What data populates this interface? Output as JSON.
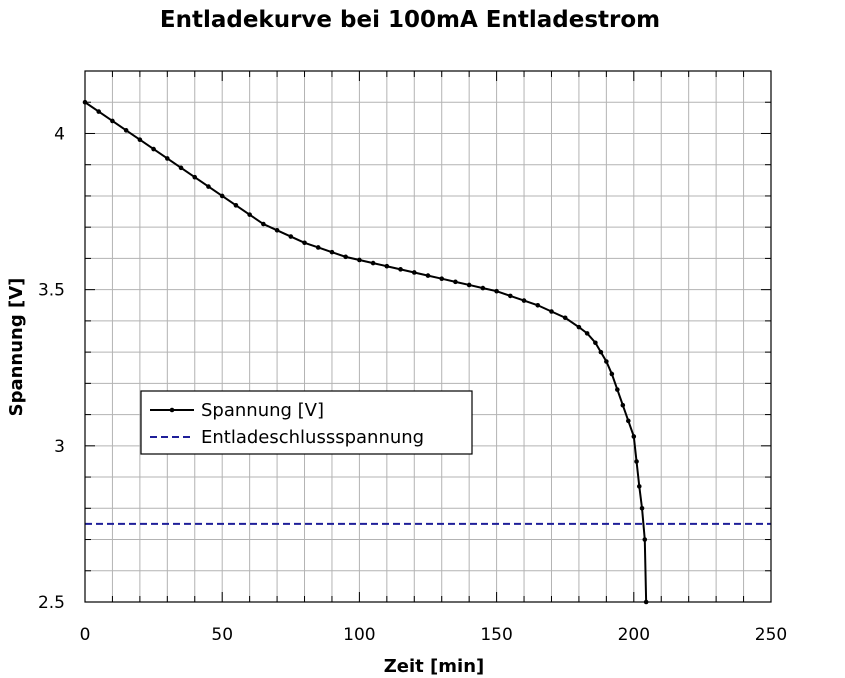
{
  "chart_data": {
    "type": "line",
    "title": "Entladekurve bei 100mA Entladestrom",
    "xlabel": "Zeit [min]",
    "ylabel": "Spannung [V]",
    "xlim": [
      0,
      250
    ],
    "ylim": [
      2.5,
      4.2
    ],
    "xticks": [
      0,
      50,
      100,
      150,
      200,
      250
    ],
    "yticks": [
      2.5,
      3,
      3.5,
      4
    ],
    "xtick_labels": [
      "0",
      "50",
      "100",
      "150",
      "200",
      "250"
    ],
    "ytick_labels": [
      "2.5",
      "3",
      "3.5",
      "4"
    ],
    "grid": true,
    "legend_placement": "center-left",
    "series": [
      {
        "name": "Spannung [V]",
        "color": "#000000",
        "style": "solid-with-markers",
        "x": [
          0,
          5,
          10,
          15,
          20,
          25,
          30,
          35,
          40,
          45,
          50,
          55,
          60,
          65,
          70,
          75,
          80,
          85,
          90,
          95,
          100,
          105,
          110,
          115,
          120,
          125,
          130,
          135,
          140,
          145,
          150,
          155,
          160,
          165,
          170,
          175,
          180,
          183,
          186,
          188,
          190,
          192,
          194,
          196,
          198,
          200,
          201,
          202,
          203,
          204,
          204.5
        ],
        "y": [
          4.1,
          4.07,
          4.04,
          4.01,
          3.98,
          3.95,
          3.92,
          3.89,
          3.86,
          3.83,
          3.8,
          3.77,
          3.74,
          3.71,
          3.69,
          3.67,
          3.65,
          3.635,
          3.62,
          3.605,
          3.595,
          3.585,
          3.575,
          3.565,
          3.555,
          3.545,
          3.535,
          3.525,
          3.515,
          3.505,
          3.495,
          3.48,
          3.465,
          3.45,
          3.43,
          3.41,
          3.38,
          3.36,
          3.33,
          3.3,
          3.27,
          3.23,
          3.18,
          3.13,
          3.08,
          3.03,
          2.95,
          2.87,
          2.8,
          2.7,
          2.5
        ]
      },
      {
        "name": "Entladeschlussspannung",
        "color": "#1f1f99",
        "style": "dashed",
        "x": [
          0,
          250
        ],
        "y": [
          2.75,
          2.75
        ]
      }
    ]
  }
}
